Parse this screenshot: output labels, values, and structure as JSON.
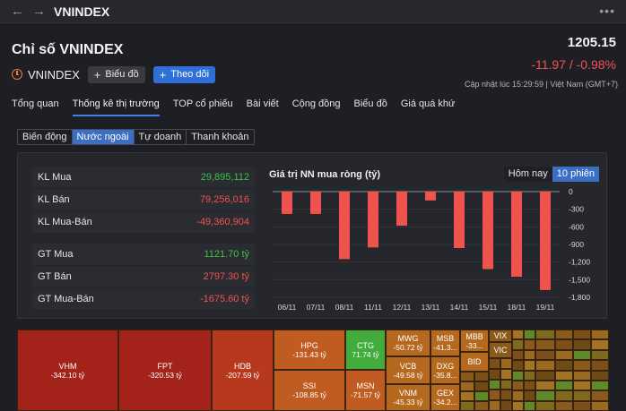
{
  "topbar": {
    "back": "←",
    "forward": "→",
    "title": "VNINDEX",
    "more": "•••"
  },
  "header": {
    "title": "Chỉ số VNINDEX",
    "symbol": "VNINDEX",
    "chart_button": "Biểu đồ",
    "follow_button": "Theo dõi",
    "price": "1205.15",
    "change": "-11.97 / -0.98%",
    "updated": "Cập nhật lúc  15:29:59 | Việt Nam (GMT+7)"
  },
  "tabs": [
    "Tổng quan",
    "Thống kê thị trường",
    "TOP cổ phiếu",
    "Bài viết",
    "Cộng đồng",
    "Biểu đồ",
    "Giá quá khứ"
  ],
  "active_tab": 1,
  "subtabs": [
    "Biến động",
    "Nước ngoài",
    "Tự doanh",
    "Thanh khoản"
  ],
  "active_subtab": 1,
  "stats": [
    {
      "label": "KL Mua",
      "value": "29,895,112",
      "color": "green"
    },
    {
      "label": "KL Bán",
      "value": "79,256,016",
      "color": "red"
    },
    {
      "label": "KL Mua-Bán",
      "value": "-49,360,904",
      "color": "red"
    },
    {
      "label": "GT Mua",
      "value": "1121.70 tỷ",
      "color": "green"
    },
    {
      "label": "GT Bán",
      "value": "2797.30 tỷ",
      "color": "red"
    },
    {
      "label": "GT Mua-Bán",
      "value": "-1675.60 tỷ",
      "color": "red"
    }
  ],
  "period_buttons": {
    "today": "Hôm nay",
    "ten": "10 phiên"
  },
  "chart_data": {
    "type": "bar",
    "title": "Giá trị NN mua ròng (tỷ)",
    "categories": [
      "06/11",
      "07/11",
      "08/11",
      "11/11",
      "12/11",
      "13/11",
      "14/11",
      "15/11",
      "18/11",
      "19/11"
    ],
    "values": [
      -380,
      -380,
      -1150,
      -950,
      -580,
      -150,
      -960,
      -1320,
      -1450,
      -1676
    ],
    "yticks": [
      "0",
      "-300",
      "-600",
      "-900",
      "-1,200",
      "-1,500",
      "-1,800"
    ],
    "ytick_values": [
      0,
      -300,
      -600,
      -900,
      -1200,
      -1500,
      -1800
    ],
    "ylim": [
      -1800,
      0
    ],
    "bar_color": "#ef5350"
  },
  "heatmap": [
    {
      "sym": "VHM",
      "val": "-342.10 tỷ"
    },
    {
      "sym": "FPT",
      "val": "-320.53 tỷ"
    },
    {
      "sym": "HDB",
      "val": "-207.59 tỷ"
    },
    {
      "sym": "HPG",
      "val": "-131.43 tỷ"
    },
    {
      "sym": "SSI",
      "val": "-108.85 tỷ"
    },
    {
      "sym": "CTG",
      "val": "71.74 tỷ"
    },
    {
      "sym": "MSN",
      "val": "-71.57 tỷ"
    },
    {
      "sym": "MWG",
      "val": "-50.72 tỷ"
    },
    {
      "sym": "VCB",
      "val": "-49.58 tỷ"
    },
    {
      "sym": "VNM",
      "val": "-45.33 tỷ"
    },
    {
      "sym": "MSB",
      "val": "-41.3..."
    },
    {
      "sym": "DXG",
      "val": "-35.8..."
    },
    {
      "sym": "GEX",
      "val": "-34.2..."
    },
    {
      "sym": "MBB",
      "val": "-33..."
    },
    {
      "sym": "BID",
      "val": ""
    },
    {
      "sym": "VIX",
      "val": ""
    },
    {
      "sym": "VIC",
      "val": ""
    }
  ]
}
